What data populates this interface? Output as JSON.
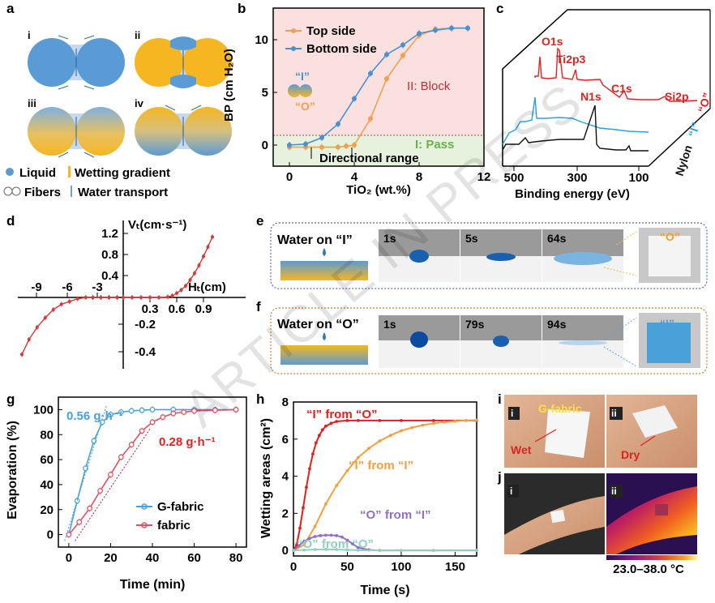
{
  "watermark": "ARTICLE IN PRESS",
  "panel_a": {
    "label": "a",
    "sub": [
      "i",
      "ii",
      "iii",
      "iv"
    ],
    "legend": {
      "liquid": "Liquid",
      "gradient": "Wetting gradient",
      "fibers": "Fibers",
      "transport": "Water transport"
    },
    "colors": {
      "blue": "#5b9bd5",
      "yellow": "#f5b622"
    }
  },
  "panel_b": {
    "label": "b",
    "ylabel": "BP (cm H₂O)",
    "xlabel": "TiO₂ (wt.%)",
    "legend_inset": {
      "i": "“I”",
      "o": "“O”"
    },
    "block_label": "II: Block",
    "pass_label": "I: Pass",
    "range_label": "Directional range"
  },
  "panel_c": {
    "label": "c",
    "xlabel": "Binding energy (eV)",
    "xticks": [
      "500",
      "300",
      "100"
    ],
    "peaks": [
      "O1s",
      "Ti2p3",
      "N1s",
      "C1s",
      "Si2p"
    ],
    "depth_labels": {
      "o": "“O”",
      "i": "“I”",
      "nylon": "Nylon"
    }
  },
  "panel_d": {
    "label": "d",
    "ylabel": "Vₜ(cm·s⁻¹)",
    "xlabel": "Hₜ(cm)",
    "neg_xticks": [
      "-9",
      "-6",
      "-3"
    ],
    "pos_xticks": [
      "0.3",
      "0.6",
      "0.9"
    ],
    "yticks_pos": [
      "1.2",
      "0.8",
      "0.4"
    ],
    "yticks_neg": [
      "-0.2",
      "-0.4"
    ]
  },
  "panel_e": {
    "label": "e",
    "title": "Water on “I”",
    "times": [
      "1s",
      "5s",
      "64s"
    ],
    "inset": "“O”"
  },
  "panel_f": {
    "label": "f",
    "title": "Water on “O”",
    "times": [
      "1s",
      "79s",
      "94s"
    ],
    "inset": "“I”"
  },
  "panel_i": {
    "label": "i",
    "sub": [
      "i",
      "ii"
    ],
    "fabric": "G-fabric",
    "wet": "Wet",
    "dry": "Dry"
  },
  "panel_j": {
    "label": "j",
    "sub": [
      "i",
      "ii"
    ],
    "scale": "23.0–38.0 °C"
  },
  "chart_data": [
    {
      "id": "b",
      "type": "line",
      "title": "",
      "xlabel": "TiO2 (wt.%)",
      "ylabel": "BP (cm H2O)",
      "xlim": [
        -1,
        12
      ],
      "ylim": [
        -2,
        13
      ],
      "xticks": [
        0,
        4,
        8,
        12
      ],
      "yticks": [
        0,
        5,
        10
      ],
      "threshold": 0.8,
      "series": [
        {
          "name": "Top side",
          "color": "#f0a050",
          "x": [
            0,
            1,
            2,
            3,
            3.5,
            4,
            5,
            6,
            7,
            8,
            9,
            10,
            11
          ],
          "y": [
            -0.2,
            -0.2,
            -0.2,
            -0.2,
            -0.1,
            0.0,
            2.5,
            6.3,
            8.5,
            10.4,
            11.0,
            11.1,
            11.1
          ]
        },
        {
          "name": "Bottom side",
          "color": "#4a90d0",
          "x": [
            0,
            1,
            2,
            3,
            4,
            5,
            6,
            7,
            8,
            9,
            10,
            11
          ],
          "y": [
            0.0,
            0.1,
            0.7,
            2.0,
            4.4,
            6.8,
            8.6,
            9.5,
            10.6,
            10.9,
            11.1,
            11.1
          ]
        }
      ]
    },
    {
      "id": "d",
      "type": "line",
      "xlabel": "HT (cm)",
      "ylabel": "VT (cm·s-1)",
      "series": [
        {
          "name": "negative side",
          "color": "#d33a3a",
          "x": [
            -10,
            -9.3,
            -8.5,
            -7.7,
            -6.9,
            -6.1,
            -5.3,
            -4.5,
            -3.7,
            -3,
            -2.2,
            -1.4,
            -0.6
          ],
          "y": [
            -0.42,
            -0.31,
            -0.22,
            -0.15,
            -0.09,
            -0.05,
            -0.03,
            -0.01,
            0,
            0,
            0,
            0,
            0
          ]
        },
        {
          "name": "positive side",
          "color": "#d33a3a",
          "x": [
            0,
            0.1,
            0.2,
            0.3,
            0.4,
            0.5,
            0.55,
            0.6,
            0.65,
            0.7,
            0.75,
            0.8,
            0.85,
            0.9,
            0.95,
            1.0
          ],
          "y": [
            0,
            0,
            0,
            0,
            0,
            0.01,
            0.03,
            0.08,
            0.14,
            0.22,
            0.33,
            0.46,
            0.61,
            0.78,
            0.96,
            1.15
          ]
        }
      ]
    },
    {
      "id": "g",
      "type": "line",
      "title": "",
      "xlabel": "Time (min)",
      "ylabel": "Evaporation (%)",
      "xlim": [
        -5,
        85
      ],
      "ylim": [
        -10,
        110
      ],
      "xticks": [
        0,
        20,
        40,
        60,
        80
      ],
      "yticks": [
        0,
        20,
        40,
        60,
        80,
        100
      ],
      "rate_labels": [
        "0.56 g·h⁻¹",
        "0.28 g·h⁻¹"
      ],
      "series": [
        {
          "name": "G-fabric",
          "color": "#4aa0d8",
          "x": [
            0,
            4,
            8,
            12,
            16,
            20,
            25,
            30,
            35,
            40,
            50,
            60,
            70,
            80
          ],
          "y": [
            0,
            27,
            53,
            75,
            90,
            96,
            98,
            99,
            99.5,
            100,
            100,
            100,
            100,
            100
          ]
        },
        {
          "name": "fabric",
          "color": "#e05060",
          "x": [
            0,
            5,
            10,
            15,
            20,
            25,
            30,
            35,
            40,
            45,
            50,
            55,
            60,
            70,
            80
          ],
          "y": [
            0,
            10,
            21,
            35,
            48,
            62,
            72,
            83,
            90,
            94,
            97,
            98,
            99,
            99.5,
            100
          ]
        }
      ]
    },
    {
      "id": "h",
      "type": "line",
      "title": "",
      "xlabel": "Time (s)",
      "ylabel": "Wetting areas (cm²)",
      "xlim": [
        0,
        170
      ],
      "ylim": [
        -0.3,
        8
      ],
      "xticks": [
        0,
        50,
        100,
        150
      ],
      "yticks": [
        0,
        2,
        4,
        6,
        8
      ],
      "series": [
        {
          "name": "“I” from “O”",
          "color": "#e02020",
          "x": [
            0,
            3,
            6,
            9,
            12,
            15,
            18,
            21,
            24,
            27,
            30,
            35,
            40,
            50,
            60,
            80,
            100,
            130,
            170
          ],
          "y": [
            0,
            0.3,
            1.2,
            2.3,
            3.4,
            4.4,
            5.2,
            5.8,
            6.2,
            6.5,
            6.7,
            6.85,
            6.95,
            7.0,
            7.0,
            7.0,
            7.0,
            7.0,
            7.0
          ]
        },
        {
          "name": "“I” from “I”",
          "color": "#f0a040",
          "x": [
            0,
            10,
            20,
            30,
            40,
            50,
            60,
            70,
            80,
            90,
            100,
            110,
            120,
            130,
            140,
            150,
            160,
            170
          ],
          "y": [
            0,
            0.3,
            1.3,
            2.5,
            3.5,
            4.3,
            5.0,
            5.5,
            5.9,
            6.2,
            6.45,
            6.62,
            6.75,
            6.85,
            6.92,
            6.97,
            7.0,
            7.02
          ]
        },
        {
          "name": "“O” from “I”",
          "color": "#9070c8",
          "x": [
            0,
            5,
            10,
            15,
            20,
            25,
            30,
            35,
            40,
            45,
            50,
            55,
            60,
            70,
            80,
            100,
            130,
            170
          ],
          "y": [
            0,
            0.25,
            0.5,
            0.65,
            0.75,
            0.8,
            0.82,
            0.82,
            0.8,
            0.72,
            0.55,
            0.35,
            0.15,
            0.03,
            0,
            0,
            0,
            0
          ]
        },
        {
          "name": "“O” from “O”",
          "color": "#90d0c0",
          "x": [
            0,
            10,
            20,
            30,
            40,
            50,
            60,
            80,
            100,
            130,
            170
          ],
          "y": [
            0,
            0.02,
            0.05,
            0.06,
            0.05,
            0.03,
            0.01,
            0,
            0,
            0,
            0
          ]
        }
      ]
    }
  ]
}
